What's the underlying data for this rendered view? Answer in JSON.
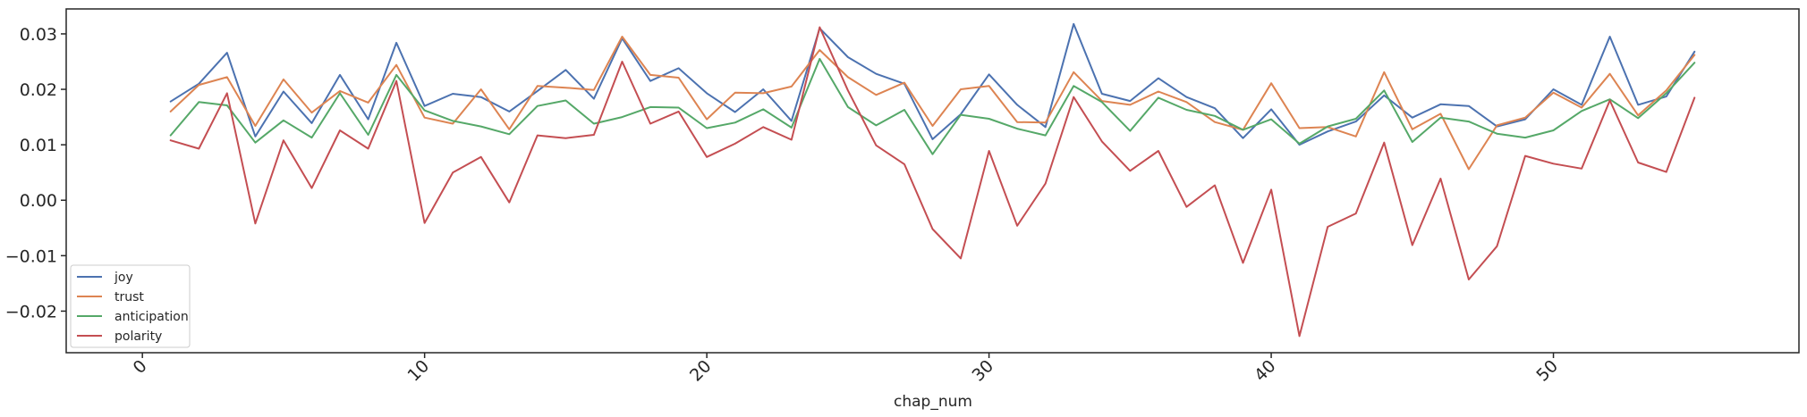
{
  "chart_data": {
    "type": "line",
    "title": "",
    "xlabel": "chap_num",
    "ylabel": "",
    "xlim": [
      -2.7,
      58.7
    ],
    "ylim": [
      -0.0275,
      0.0345
    ],
    "x_ticks": [
      0,
      10,
      20,
      30,
      40,
      50
    ],
    "x_tick_labels": [
      "0",
      "10",
      "20",
      "30",
      "40",
      "50"
    ],
    "y_ticks": [
      -0.02,
      -0.01,
      0.0,
      0.01,
      0.02,
      0.03
    ],
    "y_tick_labels": [
      "−0.02",
      "−0.01",
      "0.00",
      "0.01",
      "0.02",
      "0.03"
    ],
    "grid": false,
    "legend_position": "lower-left",
    "x": [
      1,
      2,
      3,
      4,
      5,
      6,
      7,
      8,
      9,
      10,
      11,
      12,
      13,
      14,
      15,
      16,
      17,
      18,
      19,
      20,
      21,
      22,
      23,
      24,
      25,
      26,
      27,
      28,
      29,
      30,
      31,
      32,
      33,
      34,
      35,
      36,
      37,
      38,
      39,
      40,
      41,
      42,
      43,
      44,
      45,
      46,
      47,
      48,
      49,
      50,
      51,
      52,
      53,
      54,
      55
    ],
    "series": [
      {
        "name": "joy",
        "color": "#4c72b0",
        "values": [
          0.0178,
          0.021,
          0.0266,
          0.0115,
          0.0196,
          0.0139,
          0.0226,
          0.0146,
          0.0284,
          0.017,
          0.0192,
          0.0186,
          0.016,
          0.0197,
          0.0235,
          0.0183,
          0.0292,
          0.0215,
          0.0238,
          0.0193,
          0.0159,
          0.02,
          0.0143,
          0.031,
          0.0258,
          0.0228,
          0.021,
          0.011,
          0.0155,
          0.0227,
          0.0172,
          0.0132,
          0.0318,
          0.0192,
          0.0179,
          0.022,
          0.0186,
          0.0166,
          0.0112,
          0.0164,
          0.01,
          0.0124,
          0.0142,
          0.0189,
          0.0149,
          0.0173,
          0.017,
          0.0133,
          0.0146,
          0.02,
          0.0172,
          0.0295,
          0.0172,
          0.0187,
          0.0268
        ]
      },
      {
        "name": "trust",
        "color": "#dd8452",
        "values": [
          0.016,
          0.0208,
          0.0222,
          0.0134,
          0.0218,
          0.0158,
          0.0197,
          0.0176,
          0.0244,
          0.0149,
          0.0138,
          0.02,
          0.0128,
          0.0206,
          0.0203,
          0.0199,
          0.0295,
          0.0226,
          0.0221,
          0.0146,
          0.0194,
          0.0193,
          0.0205,
          0.0271,
          0.0222,
          0.019,
          0.0212,
          0.0134,
          0.02,
          0.0206,
          0.0141,
          0.014,
          0.0231,
          0.0179,
          0.0172,
          0.0196,
          0.0177,
          0.0141,
          0.0127,
          0.0211,
          0.013,
          0.0132,
          0.0115,
          0.0231,
          0.0128,
          0.0156,
          0.0056,
          0.0135,
          0.0149,
          0.0194,
          0.0167,
          0.0228,
          0.0153,
          0.0198,
          0.0262
        ]
      },
      {
        "name": "anticipation",
        "color": "#55a868",
        "values": [
          0.0117,
          0.0177,
          0.0171,
          0.0104,
          0.0144,
          0.0113,
          0.0193,
          0.0118,
          0.0226,
          0.0162,
          0.0143,
          0.0133,
          0.0119,
          0.017,
          0.018,
          0.0138,
          0.015,
          0.0168,
          0.0167,
          0.013,
          0.014,
          0.0164,
          0.0131,
          0.0255,
          0.0168,
          0.0135,
          0.0163,
          0.0083,
          0.0154,
          0.0147,
          0.0129,
          0.0117,
          0.0206,
          0.0177,
          0.0125,
          0.0185,
          0.0163,
          0.0152,
          0.0127,
          0.0146,
          0.0102,
          0.0133,
          0.0147,
          0.0198,
          0.0105,
          0.0149,
          0.0142,
          0.012,
          0.0113,
          0.0126,
          0.0161,
          0.0182,
          0.0148,
          0.0193,
          0.0248
        ]
      },
      {
        "name": "polarity",
        "color": "#c44e52",
        "values": [
          0.0108,
          0.0093,
          0.0193,
          -0.0042,
          0.0108,
          0.0022,
          0.0126,
          0.0093,
          0.0215,
          -0.0041,
          0.005,
          0.0078,
          -0.0004,
          0.0117,
          0.0112,
          0.0118,
          0.025,
          0.0138,
          0.016,
          0.0078,
          0.0102,
          0.0132,
          0.0109,
          0.0312,
          0.0198,
          0.0099,
          0.0065,
          -0.0052,
          -0.0105,
          0.0089,
          -0.0046,
          0.003,
          0.0186,
          0.0106,
          0.0053,
          0.0089,
          -0.0012,
          0.0027,
          -0.0113,
          0.0019,
          -0.0245,
          -0.0048,
          -0.0024,
          0.0104,
          -0.0081,
          0.0039,
          -0.0143,
          -0.0083,
          0.008,
          0.0066,
          0.0057,
          0.018,
          0.0068,
          0.0051,
          0.0185
        ]
      }
    ]
  }
}
